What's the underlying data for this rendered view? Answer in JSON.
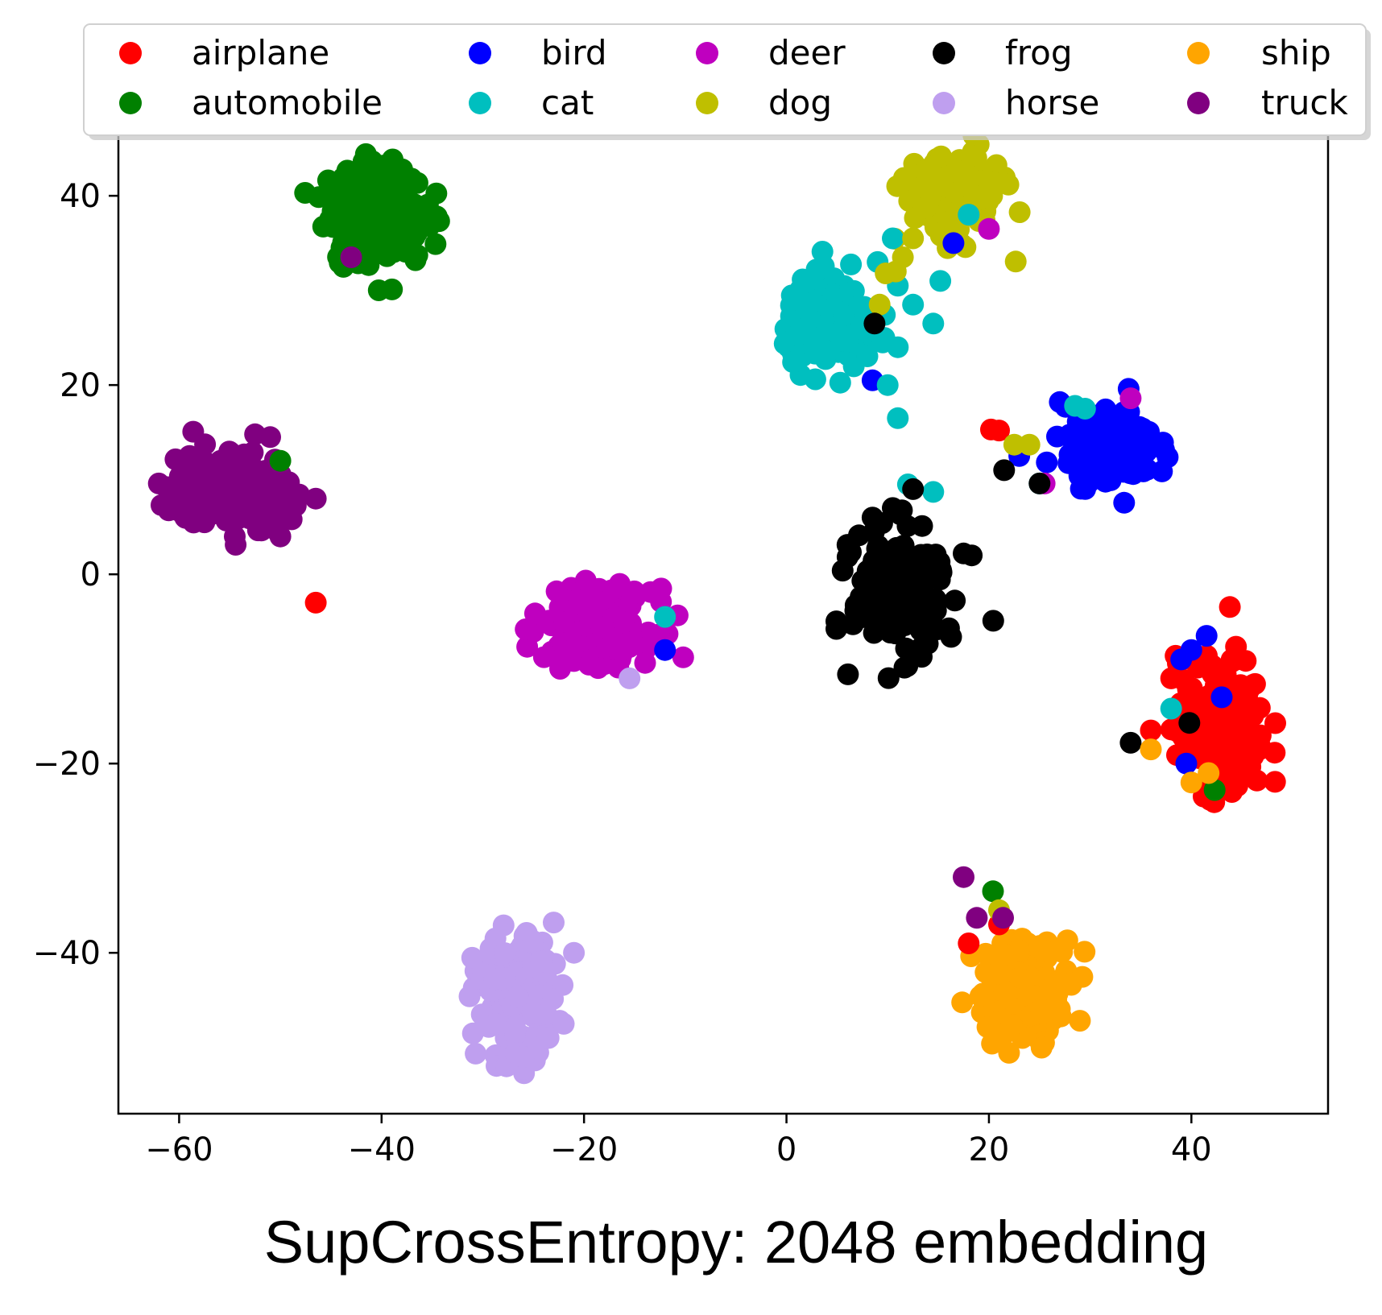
{
  "chart_data": {
    "type": "scatter",
    "title": "SupCrossEntropy: 2048 embedding",
    "xlabel": "",
    "ylabel": "",
    "xlim": [
      -66,
      53.5
    ],
    "ylim": [
      -57,
      47.5
    ],
    "xticks": [
      -60,
      -40,
      -20,
      0,
      20,
      40
    ],
    "yticks": [
      -40,
      -20,
      0,
      20,
      40
    ],
    "xtick_labels": [
      "−60",
      "−40",
      "−20",
      "0",
      "20",
      "40"
    ],
    "ytick_labels": [
      "−40",
      "−20",
      "0",
      "20",
      "40"
    ],
    "legend_position": "top",
    "legend_columns": 5,
    "series": [
      {
        "name": "airplane",
        "color": "#ff0000",
        "cluster": {
          "cx": 43,
          "cy": -16,
          "sx": 2.2,
          "sy": 3.5,
          "n": 170
        },
        "points": [
          [
            20.2,
            15.3
          ],
          [
            21.0,
            15.2
          ],
          [
            -46.5,
            -3
          ],
          [
            38,
            -11
          ],
          [
            36,
            -16.5
          ],
          [
            44.5,
            -9
          ],
          [
            44,
            -23
          ],
          [
            42,
            -22
          ],
          [
            46,
            -19
          ],
          [
            21,
            -37
          ],
          [
            18,
            -39
          ]
        ]
      },
      {
        "name": "automobile",
        "color": "#008000",
        "cluster": {
          "cx": -40.5,
          "cy": 38,
          "sx": 2.4,
          "sy": 2.6,
          "n": 220
        },
        "points": [
          [
            -50,
            12
          ],
          [
            42.3,
            -22.8
          ],
          [
            20.4,
            -33.5
          ]
        ]
      },
      {
        "name": "bird",
        "color": "#0000ff",
        "cluster": {
          "cx": 32,
          "cy": 13.5,
          "sx": 2.2,
          "sy": 1.9,
          "n": 190
        },
        "points": [
          [
            8.5,
            20.5
          ],
          [
            16.5,
            35
          ],
          [
            -12,
            -8
          ],
          [
            41.5,
            -6.5
          ],
          [
            40,
            -8
          ],
          [
            39,
            -9
          ],
          [
            43,
            -13
          ],
          [
            39.5,
            -20
          ],
          [
            23,
            12.5
          ],
          [
            27,
            18.2
          ],
          [
            33.8,
            19.6
          ]
        ]
      },
      {
        "name": "cat",
        "color": "#00bfbf",
        "cluster": {
          "cx": 4.5,
          "cy": 26.5,
          "sx": 2.3,
          "sy": 2.3,
          "n": 160
        },
        "points": [
          [
            10.5,
            35.5
          ],
          [
            9,
            33
          ],
          [
            11,
            30.5
          ],
          [
            12.5,
            28.5
          ],
          [
            14.5,
            26.5
          ],
          [
            15.2,
            31
          ],
          [
            9.5,
            24.5
          ],
          [
            11,
            24
          ],
          [
            10,
            20
          ],
          [
            11,
            16.5
          ],
          [
            12,
            9.5
          ],
          [
            14.5,
            8.7
          ],
          [
            -12,
            -4.5
          ],
          [
            38,
            -14.2
          ],
          [
            28.5,
            17.8
          ],
          [
            29.5,
            17.5
          ],
          [
            25,
            9.6
          ],
          [
            18,
            38
          ]
        ]
      },
      {
        "name": "deer",
        "color": "#bf00bf",
        "cluster": {
          "cx": -18.5,
          "cy": -5.5,
          "sx": 2.6,
          "sy": 1.9,
          "n": 200
        },
        "points": [
          [
            20,
            36.5
          ],
          [
            34,
            18.6
          ],
          [
            25.5,
            9.6
          ]
        ]
      },
      {
        "name": "dog",
        "color": "#bfbf00",
        "cluster": {
          "cx": 16.5,
          "cy": 40,
          "sx": 2.4,
          "sy": 2.3,
          "n": 150
        },
        "points": [
          [
            11.5,
            33.5
          ],
          [
            12.5,
            35.5
          ],
          [
            10.8,
            32
          ],
          [
            9.8,
            31.8
          ],
          [
            9.2,
            28.5
          ],
          [
            22.5,
            13.7
          ],
          [
            24,
            13.7
          ],
          [
            21,
            -35.5
          ]
        ]
      },
      {
        "name": "frog",
        "color": "#000000",
        "cluster": {
          "cx": 11,
          "cy": -2,
          "sx": 2.2,
          "sy": 3.2,
          "n": 200
        },
        "points": [
          [
            8.7,
            26.5
          ],
          [
            12.5,
            9
          ],
          [
            18.3,
            2
          ],
          [
            17.5,
            2.2
          ],
          [
            8.5,
            6
          ],
          [
            10.5,
            7
          ],
          [
            21.5,
            11
          ],
          [
            25,
            9.6
          ],
          [
            34,
            -17.8
          ],
          [
            39.8,
            -15.7
          ]
        ]
      },
      {
        "name": "horse",
        "color": "#bf9fef",
        "cluster": {
          "cx": -27,
          "cy": -45,
          "sx": 1.9,
          "sy": 3.2,
          "n": 140
        },
        "points": [
          [
            -15.5,
            -11
          ],
          [
            -23,
            -36.8
          ],
          [
            -21,
            -40
          ],
          [
            -22,
            -47.5
          ],
          [
            -23.5,
            -49
          ],
          [
            -25,
            -50
          ],
          [
            -26,
            -51
          ]
        ]
      },
      {
        "name": "ship",
        "color": "#ffa500",
        "cluster": {
          "cx": 23.5,
          "cy": -43.5,
          "sx": 2.4,
          "sy": 2.6,
          "n": 170
        },
        "points": [
          [
            36,
            -18.5
          ],
          [
            40,
            -22
          ],
          [
            41.7,
            -21
          ]
        ]
      },
      {
        "name": "truck",
        "color": "#800080",
        "cluster": {
          "cx": -55,
          "cy": 9,
          "sx": 2.9,
          "sy": 2.0,
          "n": 230
        },
        "points": [
          [
            -43,
            33.5
          ],
          [
            -46.5,
            8
          ],
          [
            -51,
            14.5
          ],
          [
            -52.5,
            14.8
          ],
          [
            -54.5,
            4
          ],
          [
            -50,
            4
          ],
          [
            -57.5,
            5.5
          ],
          [
            17.5,
            -32
          ],
          [
            18.8,
            -36.3
          ],
          [
            21.4,
            -36.3
          ]
        ]
      }
    ]
  }
}
